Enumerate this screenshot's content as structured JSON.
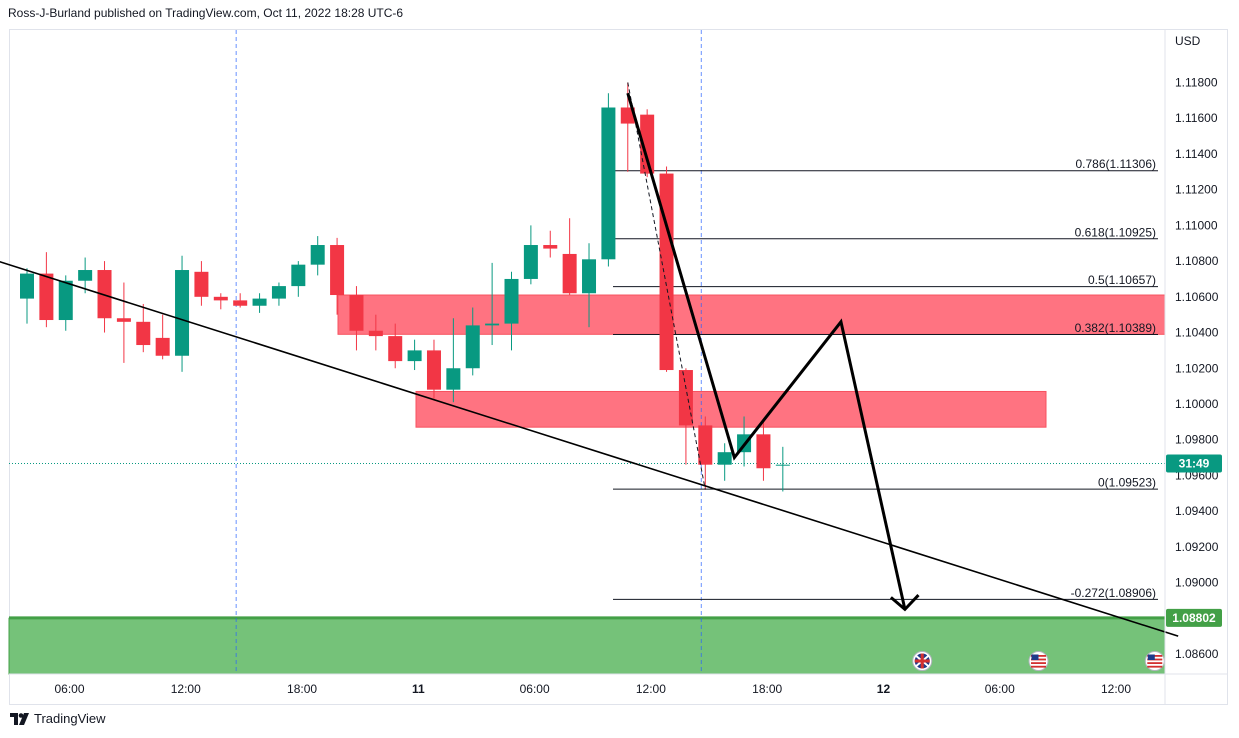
{
  "header": {
    "publisher_text": "Ross-J-Burland published on TradingView.com, Oct 11, 2022 18:28 UTC-6"
  },
  "footer": {
    "brand": "TradingView"
  },
  "colors": {
    "up": "#089981",
    "down": "#f23645",
    "zone_red": "#ff6b7a",
    "zone_green": "#66bb6a",
    "green_line": "#43a047",
    "session_line": "#2962ff"
  },
  "chart_data": {
    "type": "candlestick",
    "currency": "USD",
    "y_axis": {
      "min": 1.0848,
      "max": 1.1198,
      "ticks": [
        "1.11800",
        "1.11600",
        "1.11400",
        "1.11200",
        "1.11000",
        "1.10800",
        "1.10600",
        "1.10400",
        "1.10200",
        "1.10000",
        "1.09800",
        "1.09600",
        "1.09400",
        "1.09200",
        "1.09000",
        "1.08600"
      ]
    },
    "x_axis": {
      "labels": [
        "06:00",
        "12:00",
        "18:00",
        "11",
        "06:00",
        "12:00",
        "18:00",
        "12",
        "06:00",
        "12:00"
      ],
      "label_hours": [
        6,
        12,
        18,
        24,
        30,
        36,
        42,
        48,
        54,
        60
      ]
    },
    "candles": [
      {
        "t": 0,
        "o": 1.1059,
        "h": 1.1076,
        "l": 1.1045,
        "c": 1.1073
      },
      {
        "t": 1,
        "o": 1.1073,
        "h": 1.1085,
        "l": 1.1043,
        "c": 1.1047
      },
      {
        "t": 2,
        "o": 1.1047,
        "h": 1.1072,
        "l": 1.1041,
        "c": 1.1069
      },
      {
        "t": 3,
        "o": 1.1069,
        "h": 1.1082,
        "l": 1.1062,
        "c": 1.1075
      },
      {
        "t": 4,
        "o": 1.1075,
        "h": 1.108,
        "l": 1.104,
        "c": 1.1048
      },
      {
        "t": 5,
        "o": 1.1048,
        "h": 1.1068,
        "l": 1.1023,
        "c": 1.1046
      },
      {
        "t": 6,
        "o": 1.1046,
        "h": 1.1056,
        "l": 1.1029,
        "c": 1.1033
      },
      {
        "t": 7,
        "o": 1.1037,
        "h": 1.105,
        "l": 1.1025,
        "c": 1.1027
      },
      {
        "t": 8,
        "o": 1.1027,
        "h": 1.1083,
        "l": 1.1018,
        "c": 1.1075
      },
      {
        "t": 9,
        "o": 1.1074,
        "h": 1.108,
        "l": 1.1055,
        "c": 1.106
      },
      {
        "t": 10,
        "o": 1.106,
        "h": 1.1062,
        "l": 1.1053,
        "c": 1.1058
      },
      {
        "t": 11,
        "o": 1.1058,
        "h": 1.1062,
        "l": 1.1054,
        "c": 1.1055
      },
      {
        "t": 12,
        "o": 1.1055,
        "h": 1.1062,
        "l": 1.1051,
        "c": 1.1059
      },
      {
        "t": 13,
        "o": 1.1059,
        "h": 1.1068,
        "l": 1.1055,
        "c": 1.1066
      },
      {
        "t": 14,
        "o": 1.1066,
        "h": 1.108,
        "l": 1.106,
        "c": 1.1078
      },
      {
        "t": 15,
        "o": 1.1078,
        "h": 1.1094,
        "l": 1.1072,
        "c": 1.1089
      },
      {
        "t": 16,
        "o": 1.1089,
        "h": 1.1093,
        "l": 1.105,
        "c": 1.1061
      },
      {
        "t": 17,
        "o": 1.1061,
        "h": 1.1066,
        "l": 1.103,
        "c": 1.1041
      },
      {
        "t": 18,
        "o": 1.1041,
        "h": 1.105,
        "l": 1.103,
        "c": 1.1038
      },
      {
        "t": 19,
        "o": 1.1038,
        "h": 1.1045,
        "l": 1.102,
        "c": 1.1024
      },
      {
        "t": 20,
        "o": 1.1024,
        "h": 1.1036,
        "l": 1.1019,
        "c": 1.103
      },
      {
        "t": 21,
        "o": 1.103,
        "h": 1.1036,
        "l": 1.1003,
        "c": 1.1008
      },
      {
        "t": 22,
        "o": 1.1008,
        "h": 1.1048,
        "l": 1.1001,
        "c": 1.102
      },
      {
        "t": 23,
        "o": 1.102,
        "h": 1.1054,
        "l": 1.1016,
        "c": 1.1044
      },
      {
        "t": 24,
        "o": 1.1044,
        "h": 1.1079,
        "l": 1.1033,
        "c": 1.1045
      },
      {
        "t": 25,
        "o": 1.1045,
        "h": 1.1074,
        "l": 1.103,
        "c": 1.107
      },
      {
        "t": 26,
        "o": 1.107,
        "h": 1.11,
        "l": 1.1067,
        "c": 1.1089
      },
      {
        "t": 27,
        "o": 1.1089,
        "h": 1.1097,
        "l": 1.1082,
        "c": 1.1087
      },
      {
        "t": 28,
        "o": 1.1084,
        "h": 1.1104,
        "l": 1.1061,
        "c": 1.1062
      },
      {
        "t": 29,
        "o": 1.1062,
        "h": 1.109,
        "l": 1.1043,
        "c": 1.1081
      },
      {
        "t": 30,
        "o": 1.1081,
        "h": 1.1174,
        "l": 1.1077,
        "c": 1.1166
      },
      {
        "t": 31,
        "o": 1.1166,
        "h": 1.118,
        "l": 1.113,
        "c": 1.1157
      },
      {
        "t": 32,
        "o": 1.1162,
        "h": 1.1165,
        "l": 1.1127,
        "c": 1.1129
      },
      {
        "t": 33,
        "o": 1.1129,
        "h": 1.1133,
        "l": 1.1018,
        "c": 1.1019
      },
      {
        "t": 34,
        "o": 1.1019,
        "h": 1.102,
        "l": 1.0966,
        "c": 1.0988
      },
      {
        "t": 35,
        "o": 1.0988,
        "h": 1.0993,
        "l": 1.0952,
        "c": 1.0966
      },
      {
        "t": 36,
        "o": 1.0966,
        "h": 1.0978,
        "l": 1.0957,
        "c": 1.0973
      },
      {
        "t": 37,
        "o": 1.0973,
        "h": 1.0993,
        "l": 1.0965,
        "c": 1.0983
      },
      {
        "t": 38,
        "o": 1.0983,
        "h": 1.099,
        "l": 1.0957,
        "c": 1.0964
      },
      {
        "t": 39,
        "o": 1.0966,
        "h": 1.0976,
        "l": 1.0951,
        "c": 1.0966
      }
    ],
    "fib_levels": [
      {
        "label": "0.786(1.11306)",
        "value": 1.11306
      },
      {
        "label": "0.618(1.10925)",
        "value": 1.10925
      },
      {
        "label": "0.5(1.10657)",
        "value": 1.10657
      },
      {
        "label": "0.382(1.10389)",
        "value": 1.10389
      },
      {
        "label": "0(1.09523)",
        "value": 1.09523
      },
      {
        "label": "-0.272(1.08906)",
        "value": 1.08906
      }
    ],
    "zones": [
      {
        "color": "red",
        "top": 1.1061,
        "bottom": 1.1039
      },
      {
        "color": "red",
        "top": 1.1007,
        "bottom": 1.0987
      },
      {
        "color": "green",
        "top": 1.088,
        "bottom": 1.084
      }
    ],
    "price_badges": [
      {
        "text": "31:49",
        "value": 1.09667,
        "color": "#089981"
      },
      {
        "text": "1.08802",
        "value": 1.08802,
        "color": "#43a047"
      }
    ],
    "trendline": {
      "from": [
        -7.6,
        1.1101
      ],
      "to": [
        59.4,
        1.087
      ]
    },
    "forecast_path": [
      [
        31.0,
        1.1174
      ],
      [
        36.5,
        1.097
      ],
      [
        42.0,
        1.1046
      ],
      [
        45.3,
        1.0885
      ],
      [
        46.0,
        1.0893
      ]
    ],
    "session_lines_hours": [
      14.6,
      38.6
    ],
    "event_icons": [
      {
        "flag": "uk",
        "hour": 50.0
      },
      {
        "flag": "us",
        "hour": 56.0
      },
      {
        "flag": "us",
        "hour": 62.0
      }
    ]
  }
}
